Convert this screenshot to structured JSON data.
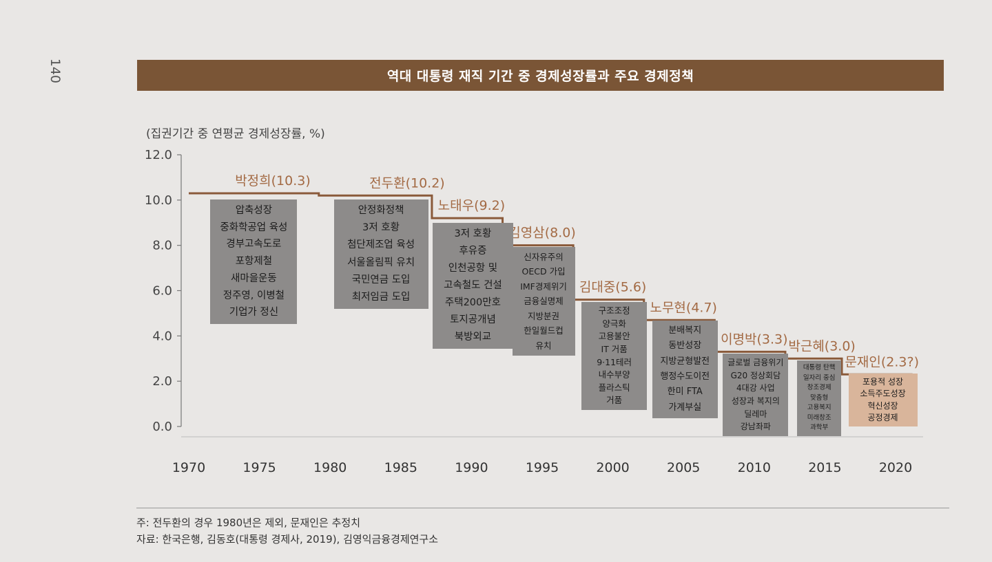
{
  "page_number": "140",
  "title": "역대 대통령 재직 기간 중 경제성장률과 주요 경제정책",
  "y_axis_label": "(집권기간 중 연평균 경제성장률, %)",
  "notes": [
    "주: 전두환의 경우 1980년은 제외, 문재인은 추정치",
    "자료: 한국은행, 김동호(대통령 경제사, 2019), 김영익금융경제연구소"
  ],
  "chart_data": {
    "type": "line",
    "title": "역대 대통령 재직 기간 중 경제성장률과 주요 경제정책",
    "ylabel": "(집권기간 중 연평균 경제성장률, %)",
    "xlabel": "",
    "x_ticks": [
      "1970",
      "1975",
      "1980",
      "1985",
      "1990",
      "1995",
      "2000",
      "2005",
      "2010",
      "2015",
      "2020"
    ],
    "y_ticks": [
      "12.0",
      "10.0",
      "8.0",
      "6.0",
      "4.0",
      "2.0",
      "0.0"
    ],
    "ylim": [
      0,
      12
    ],
    "xlim": [
      1970,
      2020
    ],
    "grid": false,
    "legend": "none",
    "series": [
      {
        "presidents": [
          {
            "name": "박정희",
            "label": "박정희(10.3)",
            "value": 10.3,
            "start": 1970,
            "end": 1979,
            "policies": [
              "압축성장",
              "중화학공업 육성",
              "경부고속도로",
              "포항제철",
              "새마을운동",
              "정주영, 이병철",
              "기업가 정신"
            ]
          },
          {
            "name": "전두환",
            "label": "전두환(10.2)",
            "value": 10.2,
            "start": 1980,
            "end": 1987,
            "policies": [
              "안정화정책",
              "3저 호황",
              "첨단제조업 육성",
              "서울올림픽 유치",
              "국민연금 도입",
              "최저임금 도입"
            ]
          },
          {
            "name": "노태우",
            "label": "노태우(9.2)",
            "value": 9.2,
            "start": 1988,
            "end": 1992,
            "policies": [
              "3저 호황",
              "후유증",
              "인천공항 및",
              "고속철도 건설",
              "주택200만호",
              "토지공개념",
              "북방외교"
            ]
          },
          {
            "name": "김영삼",
            "label": "김영삼(8.0)",
            "value": 8.0,
            "start": 1993,
            "end": 1997,
            "policies": [
              "신자유주의",
              "OECD 가입",
              "IMF경제위기",
              "금융실명제",
              "지방분권",
              "한일월드컵",
              "유치"
            ]
          },
          {
            "name": "김대중",
            "label": "김대중(5.6)",
            "value": 5.6,
            "start": 1998,
            "end": 2002,
            "policies": [
              "구조조정",
              "양극화",
              "고용불안",
              "IT 거품",
              "9·11테러",
              "내수부양",
              "플라스틱",
              "거품"
            ]
          },
          {
            "name": "노무현",
            "label": "노무현(4.7)",
            "value": 4.7,
            "start": 2003,
            "end": 2007,
            "policies": [
              "분배복지",
              "동반성장",
              "지방균형발전",
              "행정수도이전",
              "한미 FTA",
              "가계부실"
            ]
          },
          {
            "name": "이명박",
            "label": "이명박(3.3)",
            "value": 3.3,
            "start": 2008,
            "end": 2012,
            "policies": [
              "글로벌 금융위기",
              "G20 정상회담",
              "4대강 사업",
              "성장과 복지의",
              "딜레마",
              "강남좌파"
            ]
          },
          {
            "name": "박근혜",
            "label": "박근혜(3.0)",
            "value": 3.0,
            "start": 2013,
            "end": 2016,
            "policies": [
              "대통령 탄핵",
              "일자리 중심",
              "창조경제",
              "맞춤형",
              "고용복지",
              "미래창조",
              "과학부"
            ]
          },
          {
            "name": "문재인",
            "label": "문재인(2.3?)",
            "value": 2.3,
            "start": 2017,
            "end": 2021,
            "policies": [
              "포용적 성장",
              "소득주도성장",
              "혁신성장",
              "공정경제"
            ]
          }
        ]
      }
    ]
  },
  "colors": {
    "title_bar": "#7a5536",
    "line": "#8a5a3a",
    "president_label": "#a36a44",
    "box": "#8d8b8a",
    "box_highlight": "#d9b59b",
    "axis": "#777777"
  }
}
